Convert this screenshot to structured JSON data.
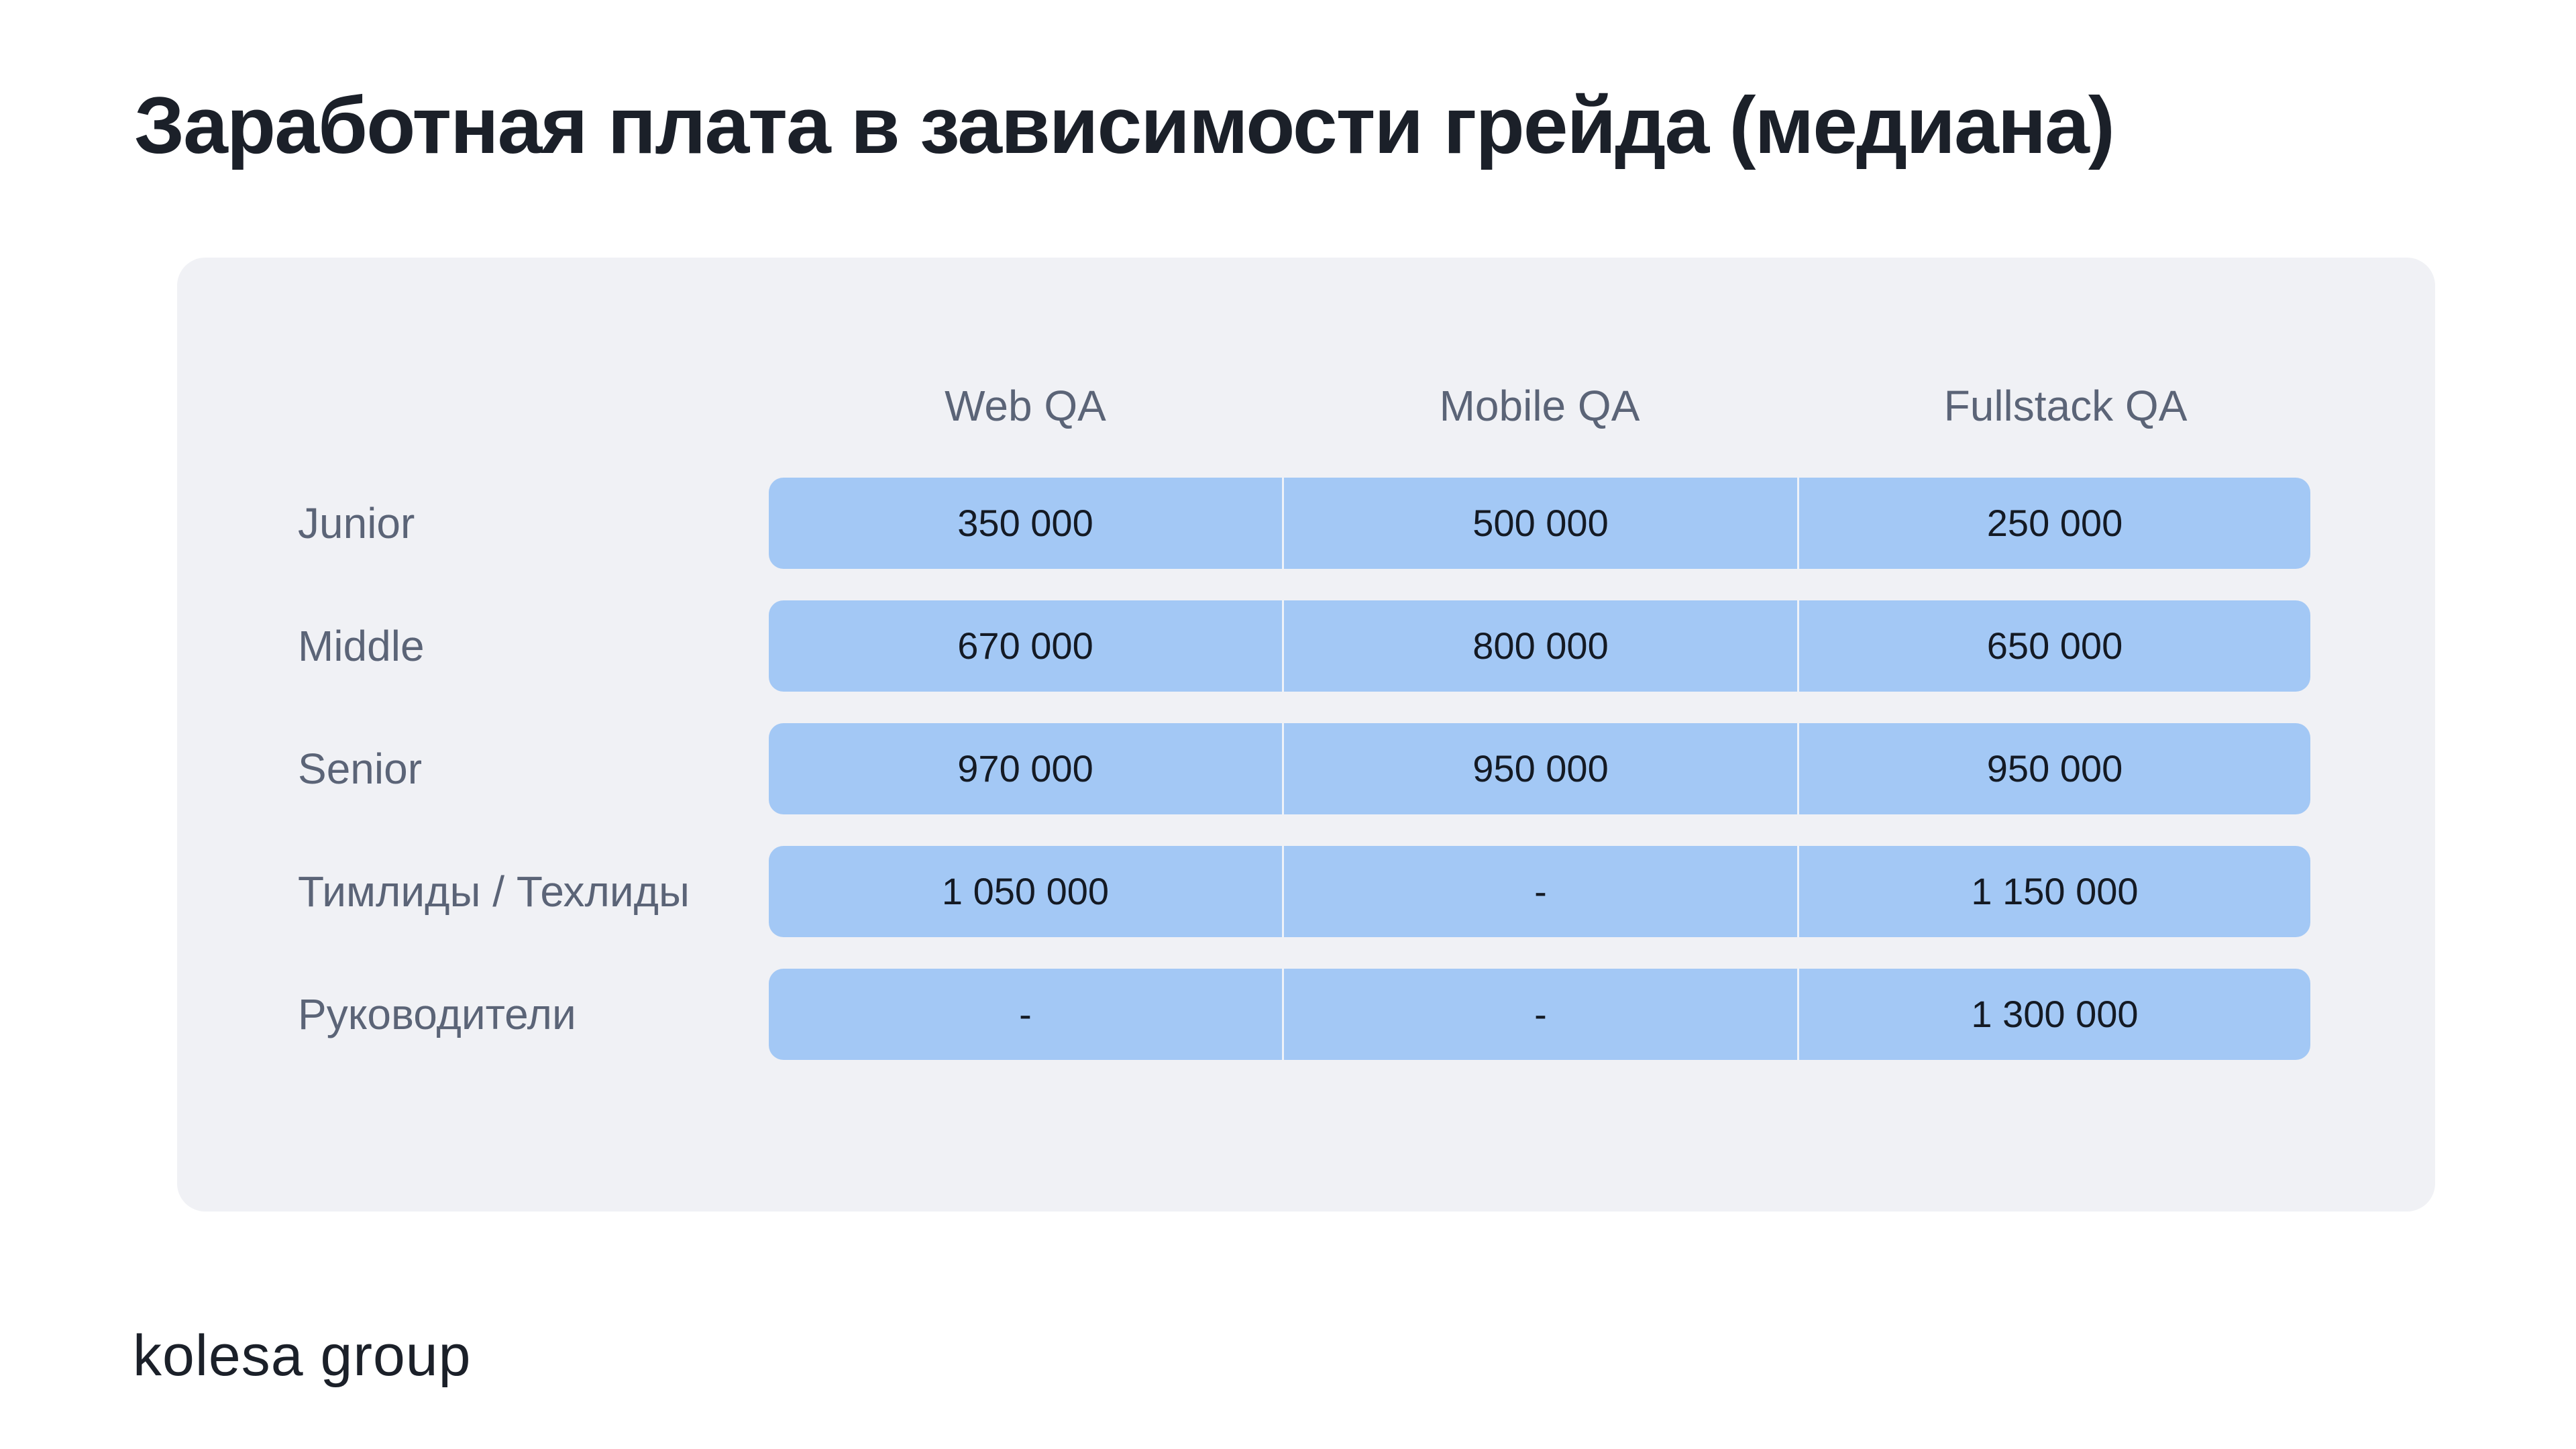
{
  "title": "Заработная плата в зависимости грейда (медиана)",
  "table": {
    "columns": [
      "Web QA",
      "Mobile QA",
      "Fullstack QA"
    ],
    "rows": [
      {
        "label": "Junior",
        "values": [
          "350 000",
          "500 000",
          "250 000"
        ]
      },
      {
        "label": "Middle",
        "values": [
          "670 000",
          "800 000",
          "650 000"
        ]
      },
      {
        "label": "Senior",
        "values": [
          "970 000",
          "950 000",
          "950 000"
        ]
      },
      {
        "label": "Тимлиды / Техлиды",
        "values": [
          "1 050 000",
          "-",
          "1 150 000"
        ]
      },
      {
        "label": "Руководители",
        "values": [
          "-",
          "-",
          "1 300 000"
        ]
      }
    ]
  },
  "logo": {
    "text": "kolesa group"
  },
  "colors": {
    "cell_fill": "#a3c8f5",
    "panel_background": "#f0f1f5",
    "label_text": "#5b6477",
    "title_text": "#1b2029"
  }
}
